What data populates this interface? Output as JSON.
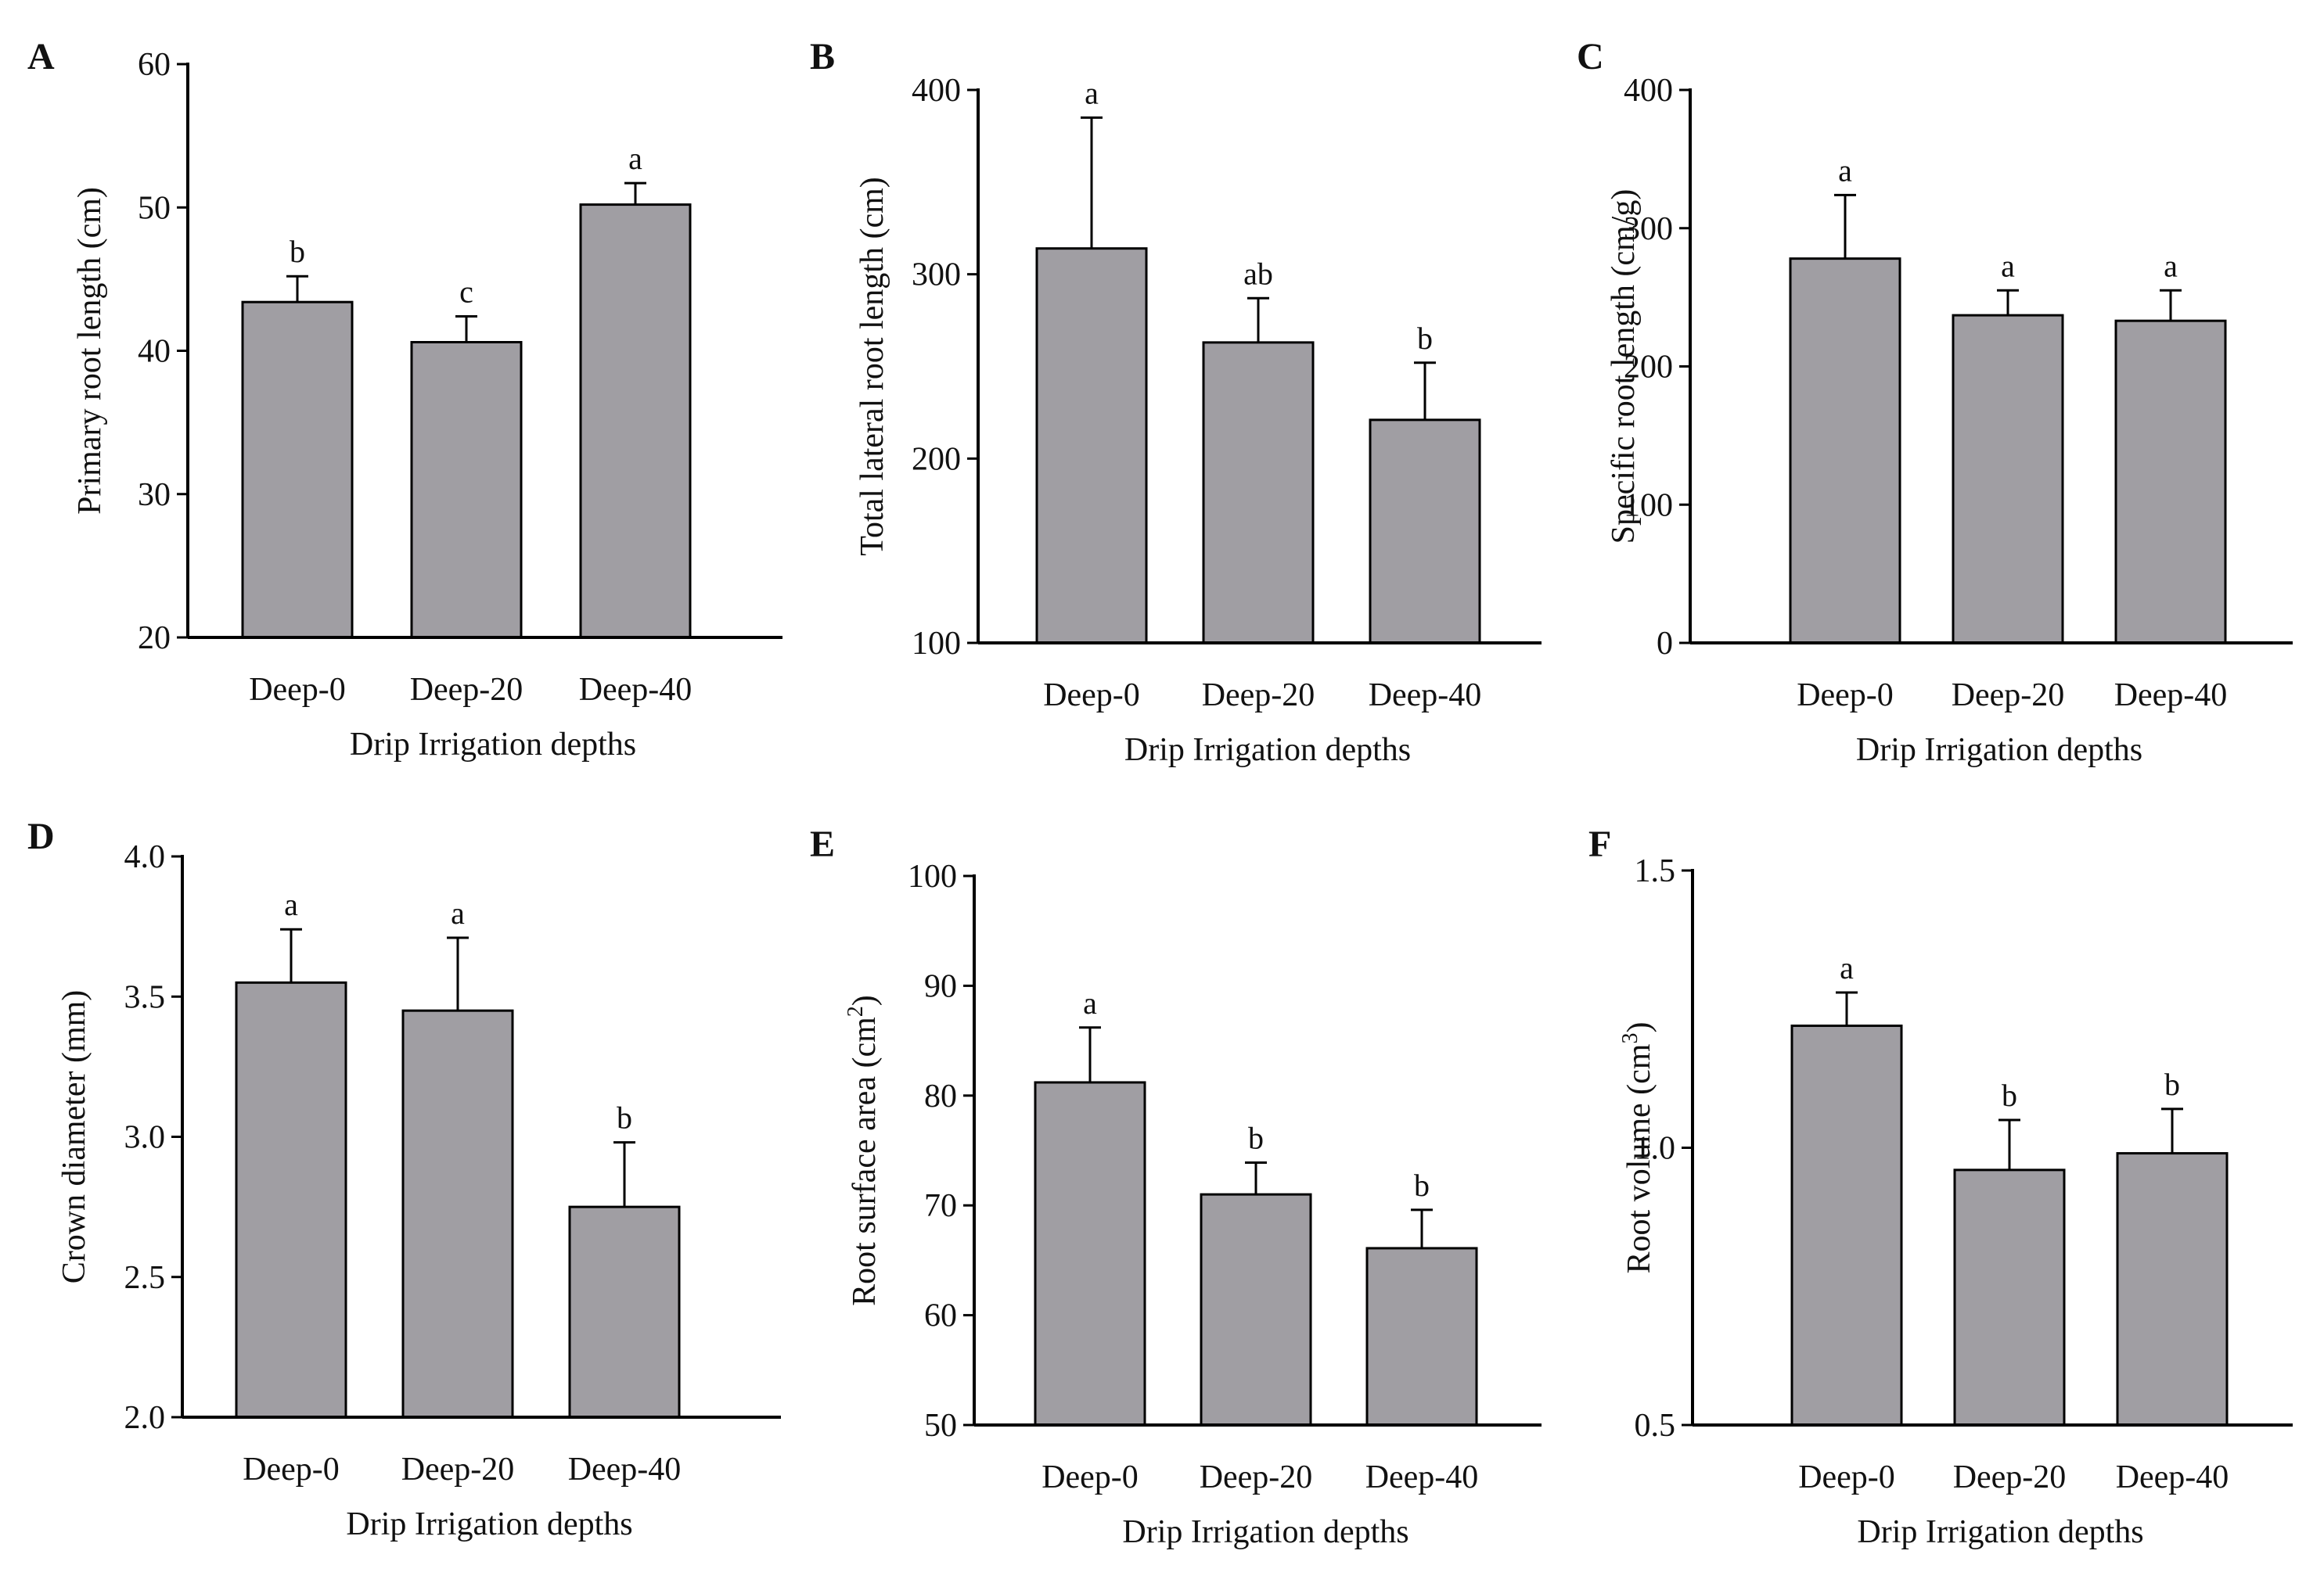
{
  "chart_data": [
    {
      "type": "bar",
      "panel": "A",
      "categories": [
        "Deep-0",
        "Deep-20",
        "Deep-40"
      ],
      "values": [
        43.4,
        40.6,
        50.2
      ],
      "errors": [
        1.8,
        1.8,
        1.5
      ],
      "significance": [
        "b",
        "c",
        "a"
      ],
      "ylabel": "Primary root length (cm)",
      "ylabel_sup": "",
      "ylabel_tail": "",
      "xlabel": "Drip Irrigation depths",
      "ylim": [
        20,
        60
      ],
      "yticks": [
        20,
        30,
        40,
        50,
        60
      ],
      "ytick_labels": [
        "20",
        "30",
        "40",
        "50",
        "60"
      ]
    },
    {
      "type": "bar",
      "panel": "B",
      "categories": [
        "Deep-0",
        "Deep-20",
        "Deep-40"
      ],
      "values": [
        314,
        263,
        221
      ],
      "errors": [
        71,
        24,
        31
      ],
      "significance": [
        "a",
        "ab",
        "b"
      ],
      "ylabel": "Total lateral root length (cm)",
      "ylabel_sup": "",
      "ylabel_tail": "",
      "xlabel": "Drip Irrigation depths",
      "ylim": [
        100,
        400
      ],
      "yticks": [
        100,
        200,
        300,
        400
      ],
      "ytick_labels": [
        "100",
        "200",
        "300",
        "400"
      ]
    },
    {
      "type": "bar",
      "panel": "C",
      "categories": [
        "Deep-0",
        "Deep-20",
        "Deep-40"
      ],
      "values": [
        278,
        237,
        233
      ],
      "errors": [
        46,
        18,
        22
      ],
      "significance": [
        "a",
        "a",
        "a"
      ],
      "ylabel": "Specific root length (cm/g)",
      "ylabel_sup": "",
      "ylabel_tail": "",
      "xlabel": "Drip Irrigation depths",
      "ylim": [
        0,
        400
      ],
      "yticks": [
        0,
        100,
        200,
        300,
        400
      ],
      "ytick_labels": [
        "0",
        "100",
        "200",
        "300",
        "400"
      ]
    },
    {
      "type": "bar",
      "panel": "D",
      "categories": [
        "Deep-0",
        "Deep-20",
        "Deep-40"
      ],
      "values": [
        3.55,
        3.45,
        2.75
      ],
      "errors": [
        0.19,
        0.26,
        0.23
      ],
      "significance": [
        "a",
        "a",
        "b"
      ],
      "ylabel": "Crown diameter (mm)",
      "ylabel_sup": "",
      "ylabel_tail": "",
      "xlabel": "Drip Irrigation depths",
      "ylim": [
        2.0,
        4.0
      ],
      "yticks": [
        2.0,
        2.5,
        3.0,
        3.5,
        4.0
      ],
      "ytick_labels": [
        "2.0",
        "2.5",
        "3.0",
        "3.5",
        "4.0"
      ]
    },
    {
      "type": "bar",
      "panel": "E",
      "categories": [
        "Deep-0",
        "Deep-20",
        "Deep-40"
      ],
      "values": [
        81.2,
        71.0,
        66.1
      ],
      "errors": [
        5.0,
        2.9,
        3.5
      ],
      "significance": [
        "a",
        "b",
        "b"
      ],
      "ylabel": "Root surface area (cm",
      "ylabel_sup": "2",
      "ylabel_tail": ")",
      "xlabel": "Drip Irrigation depths",
      "ylim": [
        50,
        100
      ],
      "yticks": [
        50,
        60,
        70,
        80,
        90,
        100
      ],
      "ytick_labels": [
        "50",
        "60",
        "70",
        "80",
        "90",
        "100"
      ]
    },
    {
      "type": "bar",
      "panel": "F",
      "categories": [
        "Deep-0",
        "Deep-20",
        "Deep-40"
      ],
      "values": [
        1.22,
        0.96,
        0.99
      ],
      "errors": [
        0.06,
        0.09,
        0.08
      ],
      "significance": [
        "a",
        "b",
        "b"
      ],
      "ylabel": "Root volume (cm",
      "ylabel_sup": "3",
      "ylabel_tail": ")",
      "xlabel": "Drip Irrigation depths",
      "ylim": [
        0.5,
        1.5
      ],
      "yticks": [
        0.5,
        1.0,
        1.5
      ],
      "ytick_labels": [
        "0.5",
        "1.0",
        "1.5"
      ]
    }
  ]
}
